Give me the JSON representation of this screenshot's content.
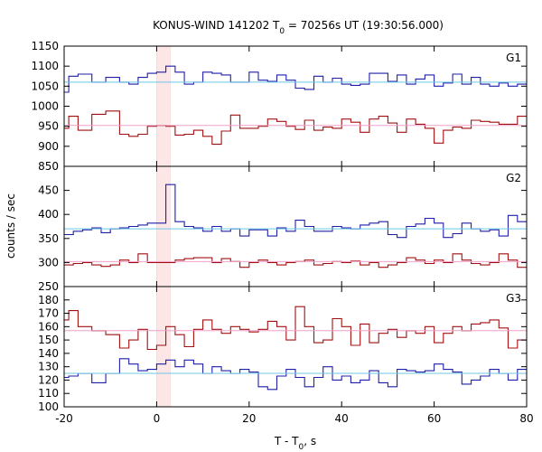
{
  "chart_data": {
    "type": "line",
    "title_main": "KONUS-WIND 141202 T",
    "title_sub": "0",
    "title_rest": " = 70256s UT (19:30:56.000)",
    "xlabel_main": "T - T",
    "xlabel_sub": "0",
    "xlabel_rest": ", s",
    "ylabel": "counts / sec",
    "xlim": [
      -20,
      80
    ],
    "x_ticks": [
      -20,
      0,
      20,
      40,
      60,
      80
    ],
    "highlight": {
      "x0": 0,
      "x1": 2.9,
      "color": "#fde6e6"
    },
    "colors": {
      "blue": "#1f1fa8",
      "red": "#a01010",
      "cyan": "#6ec6e6",
      "pink": "#f0a0c8",
      "highlight_edge": "#f6c6c6"
    },
    "panels": [
      {
        "label": "G1",
        "ylim": [
          850,
          1150
        ],
        "y_ticks": [
          850,
          900,
          950,
          1000,
          1050,
          1100,
          1150
        ],
        "bin_edges": [
          -20,
          -19,
          -17,
          -14,
          -11,
          -8,
          -6,
          -4,
          -2,
          0,
          2,
          4,
          6,
          8,
          10,
          12,
          14,
          16,
          18,
          20,
          22,
          24,
          26,
          28,
          30,
          32,
          34,
          36,
          38,
          40,
          42,
          44,
          46,
          48,
          50,
          52,
          54,
          56,
          58,
          60,
          62,
          64,
          66,
          68,
          70,
          72,
          74,
          76,
          78,
          80
        ],
        "series": [
          {
            "name": "",
            "color": "blue",
            "values": [
              1035,
              1075,
              1080,
              1060,
              1072,
              1060,
              1055,
              1072,
              1082,
              1085,
              1100,
              1085,
              1055,
              1060,
              1085,
              1082,
              1078,
              1060,
              1060,
              1085,
              1065,
              1062,
              1078,
              1065,
              1045,
              1042,
              1075,
              1060,
              1070,
              1055,
              1052,
              1055,
              1082,
              1082,
              1062,
              1078,
              1055,
              1068,
              1078,
              1050,
              1058,
              1080,
              1055,
              1072,
              1055,
              1050,
              1058,
              1050,
              1055
            ]
          },
          {
            "name": "",
            "color": "red",
            "values": [
              945,
              975,
              940,
              980,
              988,
              930,
              925,
              930,
              950,
              952,
              950,
              928,
              930,
              940,
              925,
              905,
              938,
              978,
              945,
              945,
              950,
              968,
              962,
              950,
              942,
              965,
              940,
              948,
              945,
              968,
              960,
              935,
              968,
              975,
              958,
              935,
              968,
              955,
              945,
              908,
              940,
              948,
              945,
              965,
              962,
              960,
              955,
              955,
              975
            ]
          },
          {
            "name": "",
            "color": "cyan",
            "constant": 1060
          },
          {
            "name": "",
            "color": "pink",
            "constant": 952
          }
        ]
      },
      {
        "label": "G2",
        "ylim": [
          250,
          500
        ],
        "y_ticks": [
          250,
          300,
          350,
          400,
          450
        ],
        "bin_edges": [
          -20,
          -18,
          -16,
          -14,
          -12,
          -10,
          -8,
          -6,
          -4,
          -2,
          0,
          1,
          2,
          3,
          4,
          6,
          8,
          10,
          12,
          14,
          16,
          18,
          20,
          22,
          24,
          26,
          28,
          30,
          32,
          34,
          36,
          38,
          40,
          42,
          44,
          46,
          48,
          50,
          52,
          54,
          56,
          58,
          60,
          62,
          64,
          66,
          68,
          70,
          72,
          74,
          76,
          78,
          80
        ],
        "series": [
          {
            "name": "",
            "color": "blue",
            "values": [
              358,
              365,
              368,
              372,
              362,
              370,
              372,
              375,
              378,
              382,
              382,
              382,
              462,
              462,
              385,
              375,
              372,
              365,
              375,
              365,
              370,
              355,
              368,
              368,
              355,
              372,
              365,
              388,
              375,
              365,
              365,
              375,
              372,
              370,
              378,
              382,
              385,
              358,
              352,
              375,
              380,
              392,
              382,
              352,
              360,
              382,
              370,
              365,
              368,
              355,
              398,
              385
            ]
          },
          {
            "name": "",
            "color": "red",
            "values": [
              295,
              298,
              300,
              295,
              292,
              295,
              305,
              300,
              318,
              300,
              300,
              300,
              300,
              300,
              305,
              308,
              310,
              310,
              300,
              308,
              302,
              290,
              300,
              305,
              300,
              295,
              300,
              302,
              305,
              295,
              298,
              302,
              300,
              303,
              295,
              300,
              290,
              295,
              300,
              310,
              305,
              298,
              305,
              300,
              318,
              305,
              298,
              295,
              300,
              318,
              305,
              290
            ]
          },
          {
            "name": "",
            "color": "cyan",
            "constant": 370
          },
          {
            "name": "",
            "color": "pink",
            "constant": 302
          }
        ]
      },
      {
        "label": "G3",
        "ylim": [
          100,
          190
        ],
        "y_ticks": [
          100,
          110,
          120,
          130,
          140,
          150,
          160,
          170,
          180
        ],
        "bin_edges": [
          -20,
          -19,
          -17,
          -14,
          -11,
          -8,
          -6,
          -4,
          -2,
          0,
          2,
          4,
          6,
          8,
          10,
          12,
          14,
          16,
          18,
          20,
          22,
          24,
          26,
          28,
          30,
          32,
          34,
          36,
          38,
          40,
          42,
          44,
          46,
          48,
          50,
          52,
          54,
          56,
          58,
          60,
          62,
          64,
          66,
          68,
          70,
          72,
          74,
          76,
          78,
          80
        ],
        "series": [
          {
            "name": "",
            "color": "blue",
            "values": [
              122,
              123,
              125,
              118,
              125,
              136,
              132,
              127,
              128,
              132,
              135,
              130,
              135,
              132,
              125,
              130,
              127,
              125,
              128,
              126,
              115,
              113,
              123,
              128,
              122,
              115,
              122,
              130,
              120,
              123,
              118,
              120,
              127,
              118,
              115,
              128,
              127,
              126,
              127,
              132,
              128,
              126,
              117,
              120,
              123,
              128,
              125,
              120,
              128
            ]
          },
          {
            "name": "",
            "color": "red",
            "values": [
              165,
              172,
              160,
              157,
              154,
              144,
              150,
              158,
              143,
              146,
              160,
              154,
              145,
              158,
              165,
              158,
              155,
              160,
              158,
              156,
              158,
              164,
              160,
              150,
              175,
              160,
              148,
              150,
              166,
              160,
              146,
              162,
              148,
              155,
              158,
              152,
              157,
              155,
              160,
              148,
              155,
              160,
              157,
              162,
              163,
              165,
              159,
              144,
              150
            ]
          },
          {
            "name": "",
            "color": "cyan",
            "constant": 125
          },
          {
            "name": "",
            "color": "pink",
            "constant": 157
          }
        ]
      }
    ]
  }
}
